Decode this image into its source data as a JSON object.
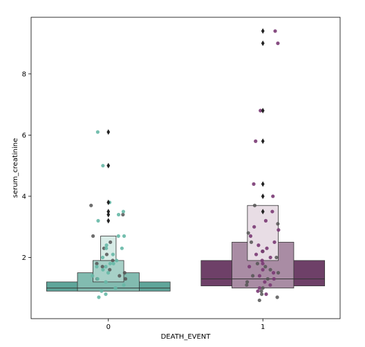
{
  "chart_data": {
    "type": "boxenplot",
    "title": "",
    "xlabel": "DEATH_EVENT",
    "ylabel": "serum_creatinine",
    "categories": [
      "0",
      "1"
    ],
    "ylim": [
      0.0,
      9.85
    ],
    "yticks": [
      "2",
      "4",
      "6",
      "8"
    ],
    "grid": false,
    "legend": "none",
    "colors": {
      "group0": "#5fa69a",
      "group1": "#6a3e68",
      "swarm_light0": "#66b8a6",
      "swarm_dark": "#555555",
      "swarm_light1": "#7a3a74"
    },
    "groups": [
      {
        "category": "0",
        "median": 1.0,
        "boxes": [
          {
            "low": 0.9,
            "high": 1.2,
            "half_width": 0.4,
            "fill": "#5fa69a"
          },
          {
            "low": 0.9,
            "high": 1.5,
            "half_width": 0.2,
            "fill": "#82bbb0"
          },
          {
            "low": 1.2,
            "high": 1.9,
            "half_width": 0.1,
            "fill": "#a7d0c7"
          },
          {
            "low": 1.9,
            "high": 2.7,
            "half_width": 0.05,
            "fill": "#d7ebe6"
          }
        ],
        "outliers": [
          6.1,
          5.0,
          3.8,
          3.5,
          3.4,
          3.2
        ],
        "swarm_light": [
          6.1,
          5.0,
          3.8,
          3.5,
          3.4,
          3.2,
          2.7,
          2.7,
          2.4,
          2.3,
          2.3,
          2.1,
          2.0,
          1.9,
          1.8,
          1.8,
          1.7,
          1.7,
          1.6,
          1.5,
          1.4,
          1.3,
          1.2,
          1.1,
          1.0,
          0.9,
          0.8,
          0.7
        ],
        "swarm_dark": [
          3.7,
          3.4,
          2.7,
          2.5,
          2.3,
          2.1,
          1.9,
          1.8,
          1.7,
          1.6,
          1.5,
          1.4,
          1.3,
          1.3
        ]
      },
      {
        "category": "1",
        "median": 1.3,
        "boxes": [
          {
            "low": 1.07,
            "high": 1.9,
            "half_width": 0.4,
            "fill": "#6e4068"
          },
          {
            "low": 1.0,
            "high": 2.5,
            "half_width": 0.2,
            "fill": "#a98ca4"
          },
          {
            "low": 1.9,
            "high": 3.7,
            "half_width": 0.1,
            "fill": "#e8dde5"
          }
        ],
        "outliers": [
          9.4,
          9.0,
          6.8,
          5.8,
          4.4,
          4.0,
          3.5
        ],
        "swarm_light": [
          9.4,
          9.0,
          6.8,
          5.8,
          4.4,
          4.0,
          3.5,
          3.2,
          3.0,
          2.9,
          2.7,
          2.5,
          2.4,
          2.3,
          2.2,
          2.1,
          2.0,
          1.9,
          1.8,
          1.7,
          1.6,
          1.5,
          1.4,
          1.3,
          1.2,
          1.1,
          1.0,
          0.9,
          0.8
        ],
        "swarm_dark": [
          3.7,
          3.1,
          2.8,
          2.5,
          2.2,
          2.0,
          1.8,
          1.7,
          1.6,
          1.5,
          1.4,
          1.3,
          1.2,
          1.1,
          1.0,
          0.9,
          0.8,
          0.7,
          0.6
        ]
      }
    ]
  }
}
